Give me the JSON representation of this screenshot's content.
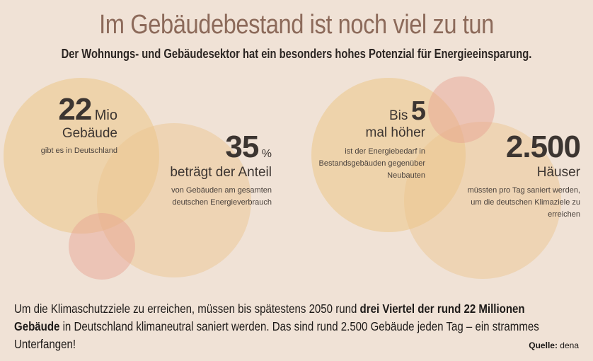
{
  "title": "Im Gebäudebestand ist noch viel zu tun",
  "subtitle": "Der Wohnungs- und Gebäudesektor hat ein besonders hohes Potenzial für Energieeinsparung.",
  "stats": [
    {
      "big": "22",
      "unit": "Mio",
      "label": "Gebäude",
      "desc": "gibt es in Deutschland"
    },
    {
      "big": "35",
      "unit": "%",
      "label": "beträgt der Anteil",
      "desc_line1": "von Gebäuden am gesamten",
      "desc_line2": "deutschen Energieverbrauch"
    },
    {
      "prefix": "Bis",
      "big": "5",
      "label": "mal höher",
      "desc_line1": "ist der Energiebedarf in",
      "desc_line2": "Bestandsgebäuden gegenüber",
      "desc_line3": "Neubauten"
    },
    {
      "big": "2.500",
      "label": "Häuser",
      "desc_line1": "müssten pro Tag saniert werden,",
      "desc_line2": "um die deutschen Klimaziele zu",
      "desc_line3": "erreichen"
    }
  ],
  "bottom": {
    "part1": "Um die Klimaschutzziele zu erreichen, müssen bis spätestens 2050 rund ",
    "bold": "drei Viertel der rund 22 Millionen Gebäude",
    "part2": " in Deutschland klimaneutral saniert werden. Das sind rund 2.500 Gebäude jeden Tag – ein strammes Unterfangen!"
  },
  "source": {
    "label": "Quelle:",
    "value": "dena"
  },
  "colors": {
    "background": "#f0e2d6",
    "title": "#8c6a5a",
    "circle_yellow": "#edc88a",
    "circle_pink": "#e9aa9c"
  }
}
